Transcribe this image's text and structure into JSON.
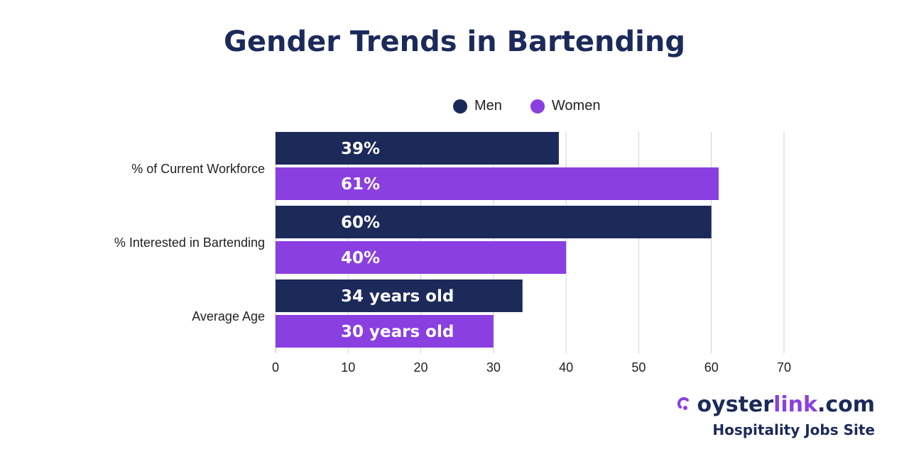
{
  "title": "Gender Trends in Bartending",
  "legend": [
    {
      "label": "Men",
      "color": "#1c2a5a"
    },
    {
      "label": "Women",
      "color": "#8a3fe0"
    }
  ],
  "chart_data": {
    "type": "bar",
    "orientation": "horizontal",
    "title": "Gender Trends in Bartending",
    "categories": [
      "% of Current Workforce",
      "% Interested in Bartending",
      "Average Age"
    ],
    "series": [
      {
        "name": "Men",
        "color": "#1c2a5a",
        "values": [
          39,
          60,
          34
        ],
        "labels": [
          "39%",
          "60%",
          "34 years old"
        ]
      },
      {
        "name": "Women",
        "color": "#8a3fe0",
        "values": [
          61,
          40,
          30
        ],
        "labels": [
          "61%",
          "40%",
          "30 years old"
        ]
      }
    ],
    "xlim": [
      0,
      70
    ],
    "xticks": [
      "0",
      "10",
      "20",
      "30",
      "40",
      "50",
      "60",
      "70"
    ],
    "grid": "vertical",
    "legend_position": "top"
  },
  "brand": {
    "name_prefix": "oyster",
    "name_accent": "link",
    "name_suffix": ".com",
    "tagline": "Hospitality Jobs Site",
    "mark_icon": "oysterlink-swirl-icon"
  }
}
